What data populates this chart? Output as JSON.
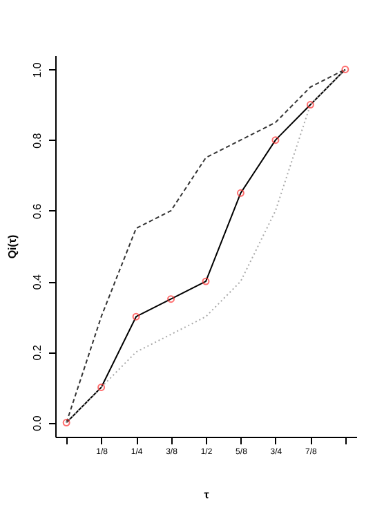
{
  "chart_data": {
    "type": "line",
    "xlabel": "τ",
    "ylabel": "Qi(τ)",
    "x": [
      0,
      0.125,
      0.25,
      0.375,
      0.5,
      0.625,
      0.75,
      0.875,
      1
    ],
    "xlim": [
      -0.04,
      1.04
    ],
    "ylim": [
      -0.04,
      1.04
    ],
    "xticks": [
      {
        "value": 0,
        "label": null
      },
      {
        "value": 0.125,
        "label": "1/8"
      },
      {
        "value": 0.25,
        "label": "1/4"
      },
      {
        "value": 0.375,
        "label": "3/8"
      },
      {
        "value": 0.5,
        "label": "1/2"
      },
      {
        "value": 0.625,
        "label": "5/8"
      },
      {
        "value": 0.75,
        "label": "3/4"
      },
      {
        "value": 0.875,
        "label": "7/8"
      },
      {
        "value": 1,
        "label": null
      }
    ],
    "yticks": [
      {
        "value": 0,
        "label": "0.0"
      },
      {
        "value": 0.2,
        "label": "0.2"
      },
      {
        "value": 0.4,
        "label": "0.4"
      },
      {
        "value": 0.6,
        "label": "0.6"
      },
      {
        "value": 0.8,
        "label": "0.8"
      },
      {
        "value": 1,
        "label": "1.0"
      }
    ],
    "grid": false,
    "series": [
      {
        "color": "#000000",
        "line_style": "solid",
        "values": [
          0,
          0.1,
          0.3,
          0.35,
          0.4,
          0.65,
          0.8,
          0.9,
          1.0
        ]
      },
      {
        "color": "#333333",
        "line_style": "dashed",
        "values": [
          0,
          0.3,
          0.55,
          0.6,
          0.75,
          0.8,
          0.85,
          0.95,
          1.0
        ]
      },
      {
        "color": "#aaaaaa",
        "line_style": "dotted",
        "values": [
          0,
          0.1,
          0.2,
          0.25,
          0.3,
          0.4,
          0.6,
          0.9,
          1.0
        ]
      },
      {
        "type": "scatter",
        "color": "#ff3030",
        "marker": "circle",
        "values": [
          0,
          0.1,
          0.3,
          0.35,
          0.4,
          0.65,
          0.8,
          0.9,
          1.0
        ]
      }
    ]
  }
}
